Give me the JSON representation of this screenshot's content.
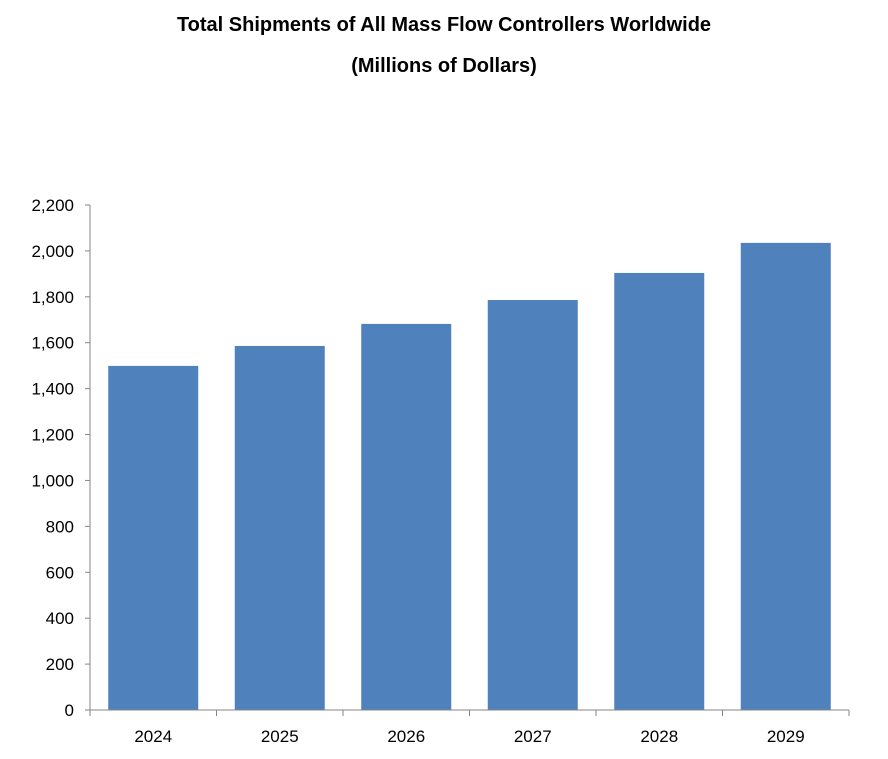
{
  "chart_data": {
    "type": "bar",
    "title": "Total Shipments of All Mass Flow Controllers Worldwide",
    "subtitle": "(Millions of Dollars)",
    "xlabel": "",
    "ylabel": "",
    "categories": [
      "2024",
      "2025",
      "2026",
      "2027",
      "2028",
      "2029"
    ],
    "values": [
      1499,
      1586,
      1682,
      1786,
      1904,
      2035
    ],
    "ylim": [
      0,
      2200
    ],
    "yticks": [
      0,
      200,
      400,
      600,
      800,
      1000,
      1200,
      1400,
      1600,
      1800,
      2000,
      2200
    ],
    "ytick_labels": [
      "0",
      "200",
      "400",
      "600",
      "800",
      "1,000",
      "1,200",
      "1,400",
      "1,600",
      "1,800",
      "2,000",
      "2,200"
    ],
    "grid": false,
    "legend": "none",
    "bar_color": "#4F81BD"
  }
}
